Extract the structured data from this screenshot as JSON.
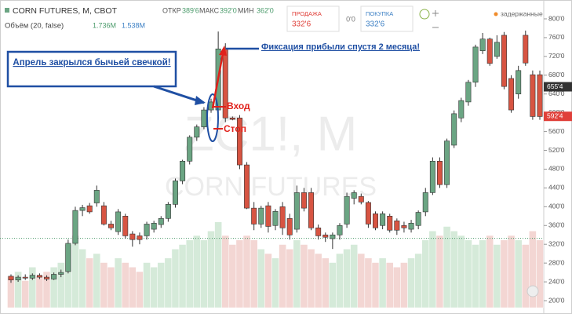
{
  "chart_data": {
    "type": "candlestick",
    "title": "CORN FUTURES, M, CBOT",
    "watermark": "ZC1!, M",
    "watermark_sub": "CORN FUTURES",
    "ohlc_labels": {
      "open_label": "ОТКР",
      "open": "389'6",
      "high_label": "МАКС",
      "high": "392'0",
      "low_label": "МИН",
      "low": "362'0"
    },
    "volume_legend": {
      "title": "Объём (20, false)",
      "value1": "1.736M",
      "value2": "1.538M"
    },
    "trade": {
      "sell_label": "ПРОДАЖА",
      "sell": "332'6",
      "spread": "0'0",
      "buy_label": "ПОКУПКА",
      "buy": "332'6"
    },
    "delayed": "задержанные",
    "annotations": {
      "april": "Апрель закрылся бычьей свечкой!",
      "profit": "Фиксация прибыли спустя 2 месяца!",
      "entry": "Вход",
      "stop": "Стоп"
    },
    "up_color": "#6ba583",
    "down_color": "#d75442",
    "open": [
      252,
      244,
      250,
      248,
      254,
      250,
      246,
      256,
      262,
      322,
      392,
      402,
      408,
      402,
      363,
      347,
      380,
      342,
      338,
      338,
      352,
      362,
      375,
      405,
      455,
      497,
      548,
      570,
      606,
      606,
      736,
      589,
      589,
      489,
      397,
      363,
      402,
      360,
      400,
      375,
      352,
      430,
      430,
      355,
      340,
      332,
      340,
      363,
      418,
      422,
      409,
      385,
      360,
      380,
      370,
      360,
      352,
      360,
      389,
      430,
      497,
      447,
      531,
      589,
      623,
      665,
      732,
      757,
      720,
      765,
      673,
      640,
      765,
      681,
      681
    ],
    "high": [
      256,
      254,
      256,
      258,
      258,
      254,
      260,
      266,
      330,
      400,
      404,
      408,
      445,
      410,
      370,
      395,
      385,
      348,
      345,
      368,
      370,
      380,
      410,
      460,
      500,
      552,
      575,
      612,
      630,
      773,
      748,
      592,
      595,
      495,
      410,
      402,
      410,
      395,
      410,
      385,
      445,
      440,
      440,
      362,
      345,
      345,
      365,
      430,
      435,
      428,
      412,
      390,
      390,
      385,
      375,
      368,
      372,
      392,
      440,
      505,
      505,
      545,
      605,
      632,
      670,
      745,
      770,
      760,
      765,
      772,
      680,
      700,
      775,
      690,
      690
    ],
    "low": [
      238,
      240,
      244,
      244,
      246,
      242,
      244,
      250,
      258,
      318,
      380,
      385,
      400,
      360,
      350,
      340,
      332,
      315,
      320,
      330,
      345,
      355,
      368,
      398,
      448,
      490,
      540,
      565,
      600,
      600,
      580,
      584,
      480,
      395,
      350,
      355,
      345,
      350,
      340,
      330,
      345,
      390,
      350,
      330,
      325,
      310,
      330,
      355,
      405,
      405,
      355,
      350,
      352,
      345,
      340,
      345,
      345,
      352,
      380,
      425,
      440,
      440,
      525,
      580,
      615,
      655,
      725,
      700,
      715,
      650,
      600,
      630,
      700,
      585,
      585
    ],
    "close": [
      244,
      250,
      248,
      254,
      250,
      246,
      256,
      260,
      322,
      392,
      398,
      389,
      435,
      363,
      355,
      389,
      338,
      330,
      330,
      363,
      365,
      375,
      405,
      455,
      497,
      548,
      570,
      606,
      623,
      736,
      589,
      586,
      489,
      397,
      363,
      397,
      358,
      390,
      355,
      340,
      430,
      397,
      355,
      338,
      335,
      340,
      360,
      422,
      430,
      410,
      363,
      355,
      385,
      350,
      350,
      355,
      365,
      388,
      430,
      497,
      447,
      540,
      598,
      626,
      665,
      740,
      757,
      705,
      750,
      656,
      606,
      690,
      706,
      592,
      592
    ],
    "volume": [
      0.7,
      0.8,
      0.6,
      0.9,
      0.7,
      0.8,
      0.9,
      1.0,
      1.4,
      1.6,
      1.3,
      1.1,
      1.2,
      1.0,
      0.9,
      1.1,
      1.0,
      0.9,
      0.8,
      1.0,
      0.9,
      1.0,
      1.1,
      1.3,
      1.4,
      1.5,
      1.6,
      1.5,
      1.7,
      1.9,
      1.6,
      1.4,
      1.5,
      1.6,
      1.5,
      1.3,
      1.2,
      1.1,
      1.4,
      1.3,
      1.5,
      1.4,
      1.3,
      1.2,
      1.1,
      1.0,
      1.2,
      1.3,
      1.4,
      1.2,
      1.1,
      1.0,
      1.1,
      1.0,
      0.9,
      1.0,
      1.1,
      1.2,
      1.5,
      1.7,
      1.6,
      1.8,
      1.7,
      1.6,
      1.5,
      1.4,
      1.5,
      1.6,
      1.4,
      1.5,
      1.6,
      1.5,
      1.4,
      1.7,
      1.5
    ],
    "vlim": [
      0,
      4
    ],
    "ylim": [
      200,
      800
    ],
    "yticks": [
      {
        "value": 200,
        "label": "200'0"
      },
      {
        "value": 240,
        "label": "240'0"
      },
      {
        "value": 280,
        "label": "280'0"
      },
      {
        "value": 320,
        "label": "320'0"
      },
      {
        "value": 360,
        "label": "360'0"
      },
      {
        "value": 400,
        "label": "400'0"
      },
      {
        "value": 440,
        "label": "440'0"
      },
      {
        "value": 480,
        "label": "480'0"
      },
      {
        "value": 520,
        "label": "520'0"
      },
      {
        "value": 560,
        "label": "560'0"
      },
      {
        "value": 600,
        "label": "600'0"
      },
      {
        "value": 640,
        "label": "640'0"
      },
      {
        "value": 680,
        "label": "680'0"
      },
      {
        "value": 720,
        "label": "720'0"
      },
      {
        "value": 760,
        "label": "760'0"
      },
      {
        "value": 800,
        "label": "800'0"
      }
    ],
    "price_labels": [
      {
        "value": 655.4,
        "label": "655'4",
        "color": "#333"
      },
      {
        "value": 592.4,
        "label": "592'4",
        "color": "#e0403a"
      }
    ],
    "reference_line": 332.6
  }
}
